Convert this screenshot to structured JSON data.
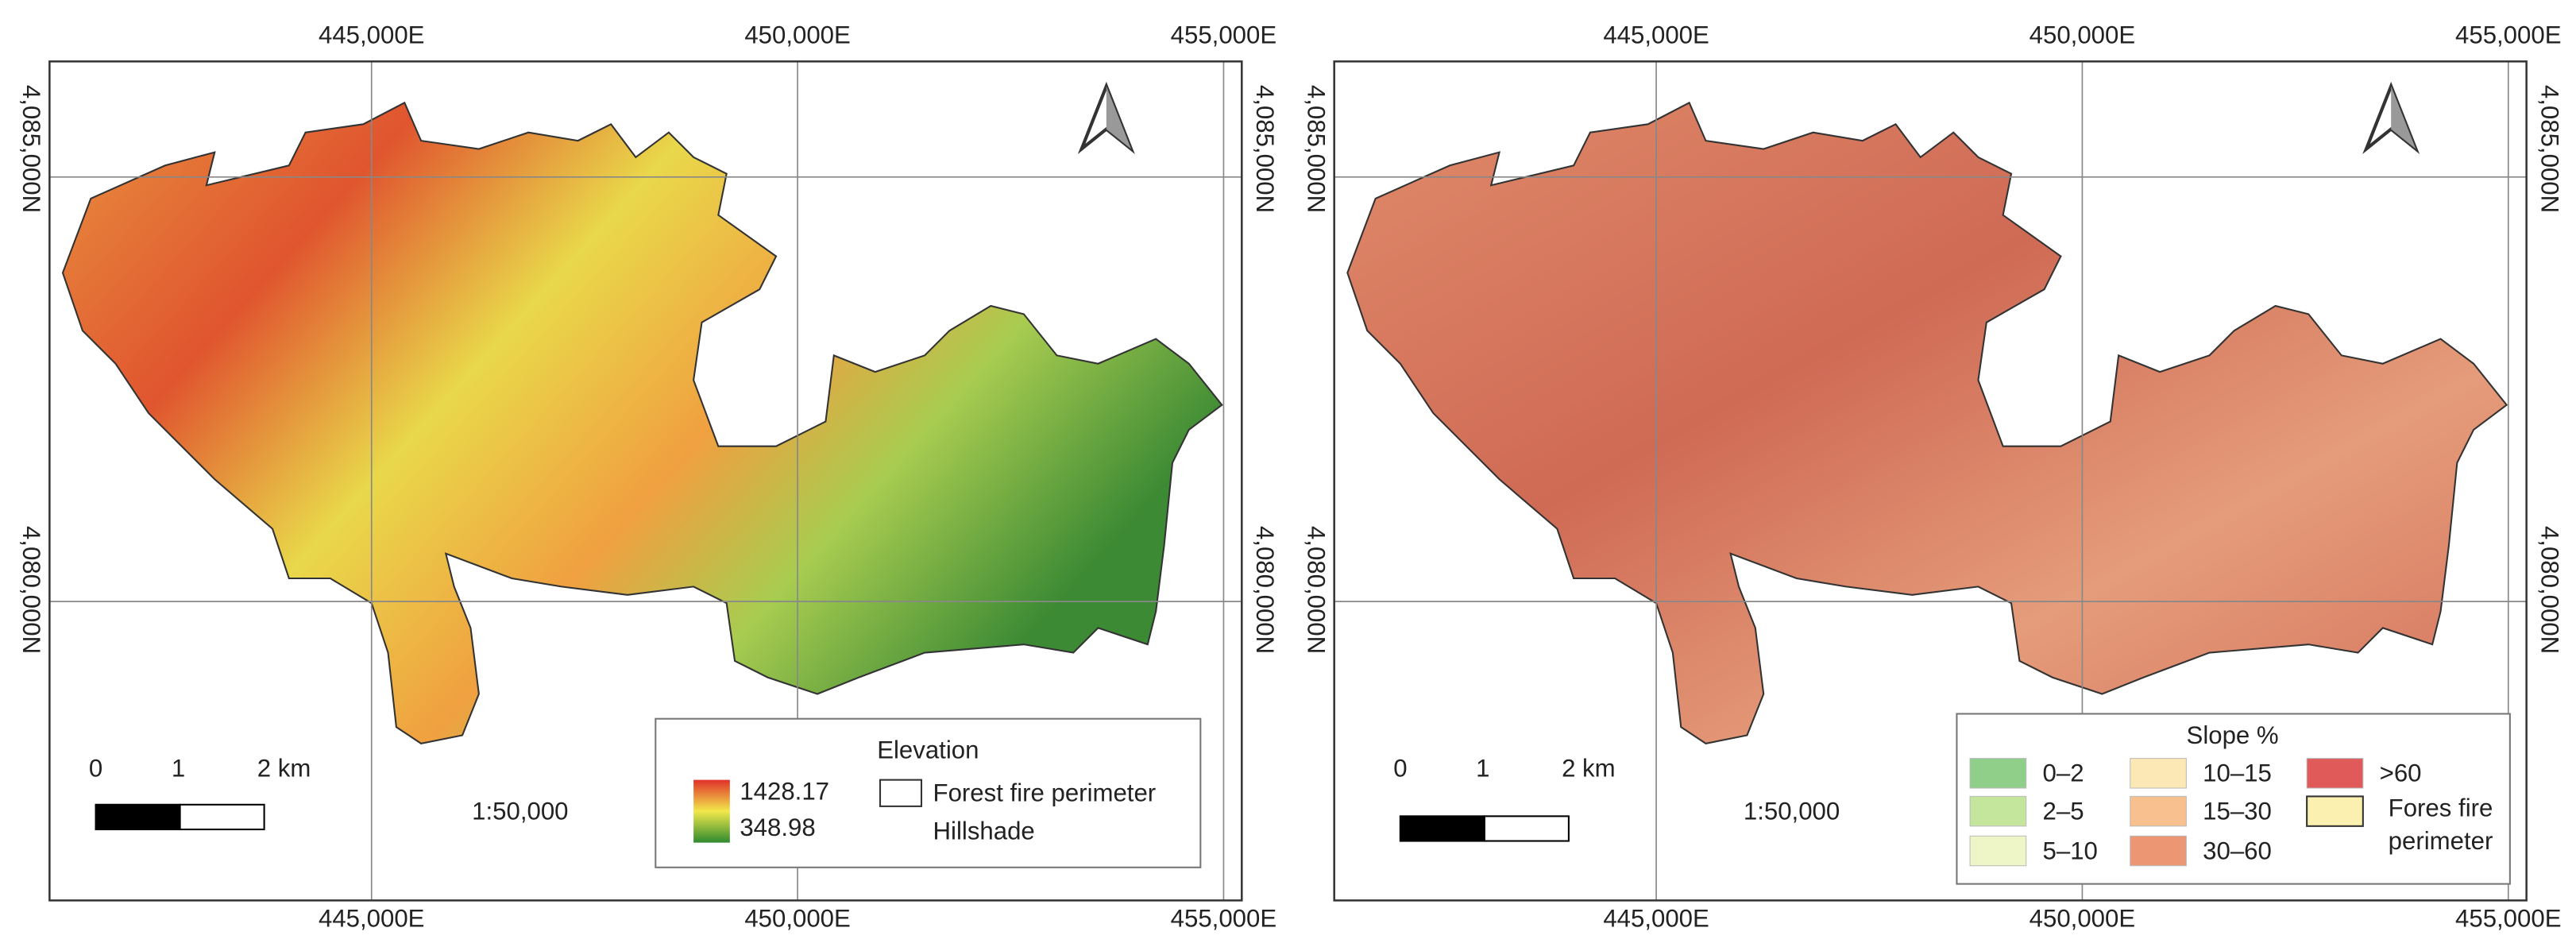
{
  "panels": [
    {
      "top_labels": [
        "445,000E",
        "450,000E",
        "455,000E"
      ],
      "bottom_labels": [
        "445,000E",
        "450,000E",
        "455,000E"
      ],
      "left_labels": [
        "4,085,000N",
        "4,080,000N"
      ],
      "right_labels": [
        "4,085,000N",
        "4,080,000N"
      ],
      "scale_bar": [
        "0",
        "1",
        "2 km"
      ],
      "scale": "1:50,000",
      "legend": {
        "title": "Elevation",
        "max": "1428.17",
        "min": "348.98",
        "items": [
          "Forest fire perimeter",
          "Hillshade"
        ]
      }
    },
    {
      "top_labels": [
        "445,000E",
        "450,000E",
        "455,000E"
      ],
      "bottom_labels": [
        "445,000E",
        "450,000E",
        "455,000E"
      ],
      "left_labels": [
        "4,085,000N",
        "4,080,000N"
      ],
      "right_labels": [
        "4,085,000N",
        "4,080,000N"
      ],
      "scale_bar": [
        "0",
        "1",
        "2 km"
      ],
      "scale": "1:50,000",
      "legend": {
        "title": "Slope %",
        "items": [
          "0–2",
          "2–5",
          "5–10",
          "10–15",
          "15–30",
          "30–60",
          ">60",
          "Fores fire perimeter"
        ]
      }
    }
  ]
}
